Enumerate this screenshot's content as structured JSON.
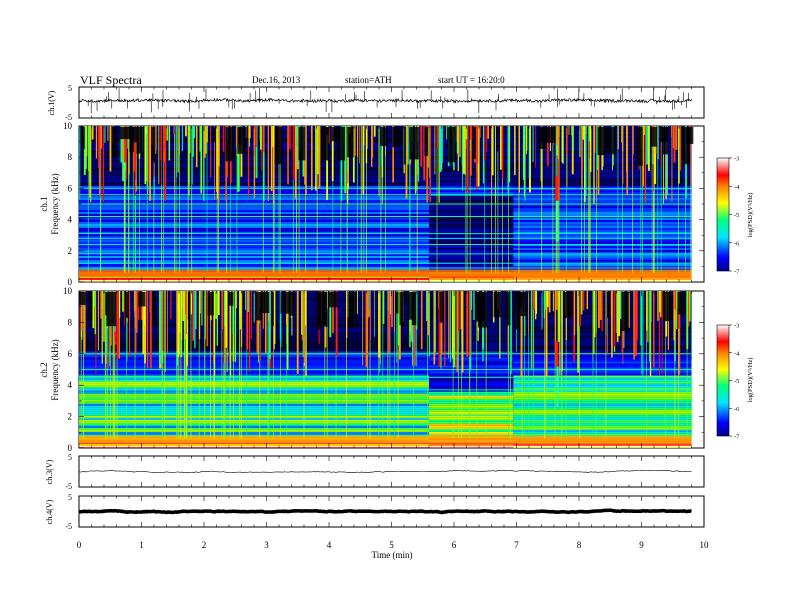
{
  "header": {
    "title": "VLF Spectra",
    "date": "Dec.16, 2013",
    "station": "station=ATH",
    "start": "start  UT =   16:20:0"
  },
  "chart_data": [
    {
      "type": "line",
      "panel": "ch1-waveform",
      "ylabel": "ch.1(V)",
      "ylim": [
        -5,
        5
      ],
      "y_ticks": [
        "5",
        "-5"
      ],
      "xlim": [
        0,
        10
      ],
      "baseline": 0.6
    },
    {
      "type": "heatmap",
      "panel": "ch1-spectrogram",
      "ylabel": "ch.1\nFrequency (kHz)",
      "ylabel_ch": "ch.1",
      "ylabel_freq": "Frequency (kHz)",
      "ylim": [
        0,
        10
      ],
      "y_ticks": [
        "0",
        "2",
        "4",
        "6",
        "8",
        "10"
      ],
      "xlim": [
        0,
        10
      ],
      "data_end_min": 9.8,
      "regime_changes_min": [
        5.6,
        6.95
      ],
      "colorbar": {
        "label": "log(PSD)(V²/Hz)",
        "ticks": [
          "-3",
          "-4",
          "-5",
          "-6",
          "-7"
        ],
        "range": [
          -7,
          -3
        ]
      }
    },
    {
      "type": "heatmap",
      "panel": "ch2-spectrogram",
      "ylabel_ch": "ch.2",
      "ylabel_freq": "Frequency (kHz)",
      "ylim": [
        0,
        10
      ],
      "y_ticks": [
        "0",
        "2",
        "4",
        "6",
        "8",
        "10"
      ],
      "xlim": [
        0,
        10
      ],
      "data_end_min": 9.8,
      "regime_changes_min": [
        5.6,
        6.95
      ],
      "colorbar": {
        "label": "log(PSD)(V²/Hz)",
        "ticks": [
          "-3",
          "-4",
          "-5",
          "-6",
          "-7"
        ],
        "range": [
          -7,
          -3
        ]
      }
    },
    {
      "type": "line",
      "panel": "ch3-waveform",
      "ylabel": "ch.3(V)",
      "ylim": [
        -5,
        5
      ],
      "y_ticks": [
        "5",
        "-5"
      ],
      "xlim": [
        0,
        10
      ],
      "baseline": 0
    },
    {
      "type": "line",
      "panel": "ch4-waveform",
      "ylabel": "ch.4(V)",
      "ylim": [
        -5,
        5
      ],
      "y_ticks": [
        "5",
        "-5"
      ],
      "xlim": [
        0,
        10
      ],
      "baseline": 0
    }
  ],
  "x_axis": {
    "label": "Time (min)",
    "ticks": [
      "0",
      "1",
      "2",
      "3",
      "4",
      "5",
      "6",
      "7",
      "8",
      "9",
      "10"
    ]
  },
  "colors": {
    "colormap": [
      "#000000",
      "#00008b",
      "#0000ff",
      "#0070ff",
      "#00e5ff",
      "#00ff80",
      "#80ff00",
      "#ffff00",
      "#ff8000",
      "#ff0000",
      "#ff9090",
      "#ffffff"
    ]
  }
}
